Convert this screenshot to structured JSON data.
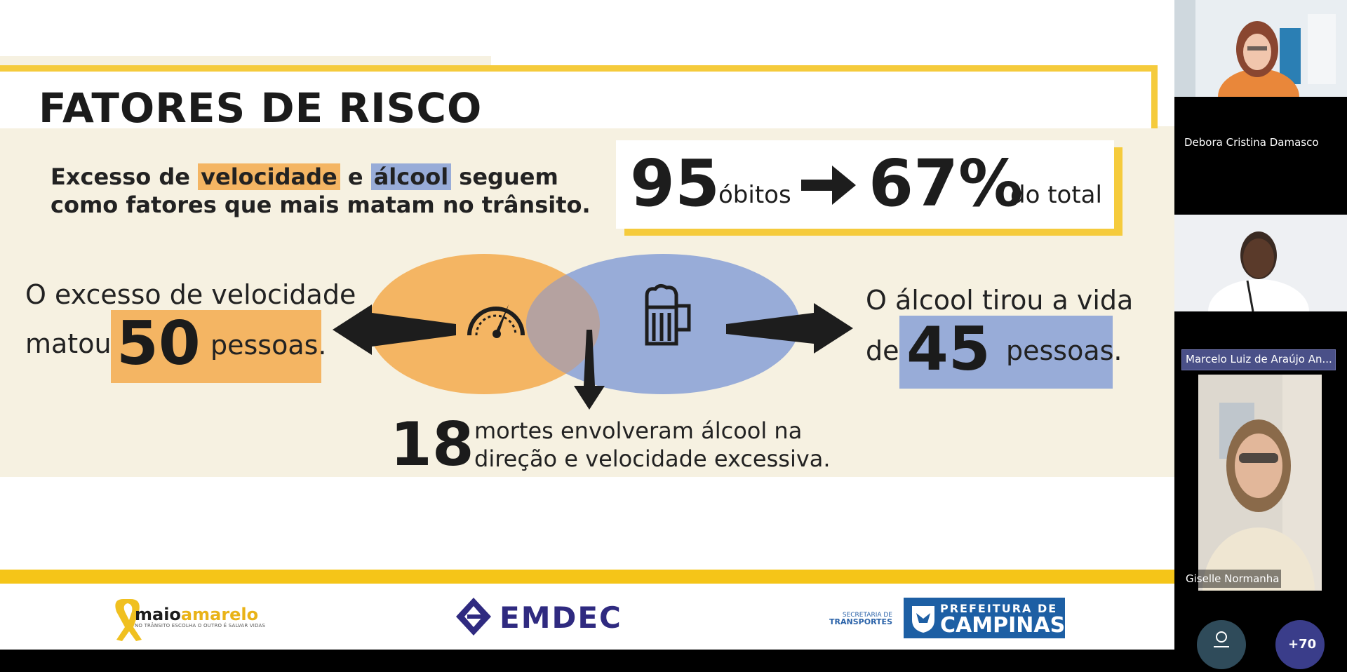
{
  "slide": {
    "title": "FATORES DE RISCO",
    "subtitle": {
      "p1": "Excesso de ",
      "speed_word": "velocidade",
      "p2": " e ",
      "alcohol_word": "álcool",
      "p3": " seguem",
      "line2": "como fatores que mais matam no trânsito."
    },
    "summary": {
      "deaths": "95",
      "deaths_label": "óbitos",
      "percent": "67%",
      "percent_label": "do total"
    },
    "speed": {
      "line1": "O excesso de velocidade",
      "pre": "matou",
      "number": "50",
      "suffix": "pessoas."
    },
    "alcohol": {
      "line1": "O álcool tirou a vida",
      "pre": "de",
      "number": "45",
      "suffix": "pessoas."
    },
    "both": {
      "number": "18",
      "line1": "mortes envolveram álcool na",
      "line2": "direção e velocidade excessiva."
    },
    "colors": {
      "speed": "#f4b563",
      "alcohol": "#98acd8",
      "overlap": "#b5a2a0",
      "accent": "#f5cb3c"
    },
    "footer": {
      "maio_logo": {
        "word1": "maio",
        "word2": "amarelo",
        "sub": "NO TRÂNSITO ESCOLHA O OUTRO É SALVAR VIDAS"
      },
      "emdec_logo": "EMDEC",
      "secretaria": {
        "line1": "SECRETARIA DE",
        "line2": "TRANSPORTES"
      },
      "prefeitura": {
        "line1": "PREFEITURA DE",
        "line2": "CAMPINAS"
      }
    }
  },
  "participants": {
    "items": [
      {
        "name": "Debora Cristina Damasco"
      },
      {
        "name": "Marcelo Luiz de Araújo An..."
      },
      {
        "name": "Giselle Normanha"
      }
    ],
    "more_count": "+70"
  }
}
